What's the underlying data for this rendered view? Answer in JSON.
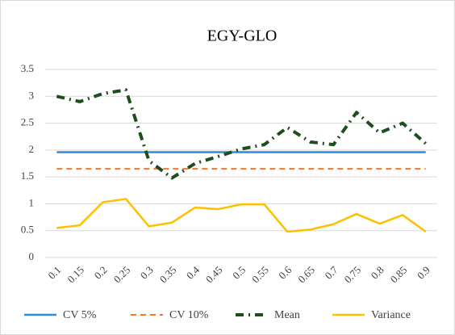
{
  "chart_data": {
    "type": "line",
    "title": "EGY-GLO",
    "categories": [
      "0.1",
      "0.15",
      "0.2",
      "0.25",
      "0.3",
      "0.35",
      "0.4",
      "0.45",
      "0.5",
      "0.55",
      "0.6",
      "0.65",
      "0.7",
      "0.75",
      "0.8",
      "0.85",
      "0.9"
    ],
    "series": [
      {
        "name": "CV 5%",
        "color": "#2e8bd8",
        "style": "solid",
        "values": [
          1.96,
          1.96,
          1.96,
          1.96,
          1.96,
          1.96,
          1.96,
          1.96,
          1.96,
          1.96,
          1.96,
          1.96,
          1.96,
          1.96,
          1.96,
          1.96,
          1.96
        ]
      },
      {
        "name": "CV 10%",
        "color": "#f4782a",
        "style": "dash",
        "values": [
          1.65,
          1.65,
          1.65,
          1.65,
          1.65,
          1.65,
          1.65,
          1.65,
          1.65,
          1.65,
          1.65,
          1.65,
          1.65,
          1.65,
          1.65,
          1.65,
          1.65
        ]
      },
      {
        "name": "Mean",
        "color": "#1e4d1e",
        "style": "dashdot",
        "values": [
          3.0,
          2.9,
          3.05,
          3.12,
          1.8,
          1.48,
          1.75,
          1.88,
          2.02,
          2.1,
          2.42,
          2.15,
          2.1,
          2.7,
          2.32,
          2.5,
          2.12
        ]
      },
      {
        "name": "Variance",
        "color": "#ffc000",
        "style": "solid",
        "values": [
          0.55,
          0.6,
          1.03,
          1.09,
          0.58,
          0.65,
          0.93,
          0.9,
          0.99,
          0.99,
          0.48,
          0.52,
          0.62,
          0.81,
          0.63,
          0.79,
          0.48
        ]
      }
    ],
    "ylim": [
      0,
      3.5
    ],
    "yticks": [
      0,
      0.5,
      1,
      1.5,
      2,
      2.5,
      3,
      3.5
    ],
    "grid": true
  }
}
